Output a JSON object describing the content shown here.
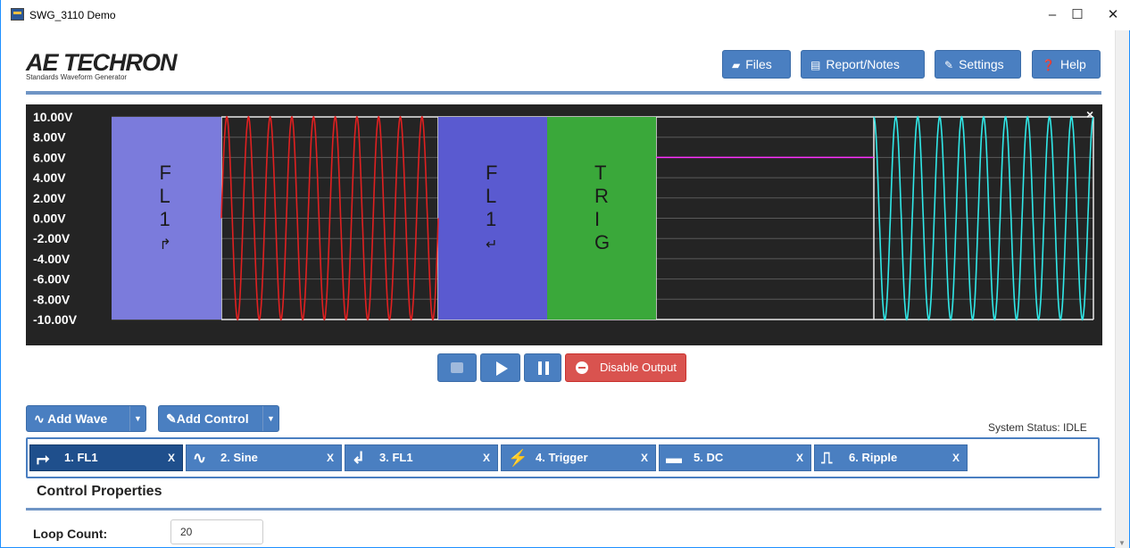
{
  "window": {
    "title": "SWG_3110 Demo",
    "controls": [
      "–",
      "☐",
      "✕"
    ]
  },
  "logo": {
    "main": "AE TECHRON",
    "sub": "Standards Waveform Generator"
  },
  "toolbar": {
    "files": "Files",
    "report": "Report/Notes",
    "settings": "Settings",
    "help": "Help"
  },
  "scope": {
    "close": "×",
    "y_labels": [
      "10.00V",
      "8.00V",
      "6.00V",
      "4.00V",
      "2.00V",
      "0.00V",
      "-2.00V",
      "-4.00V",
      "-6.00V",
      "-8.00V",
      "-10.00V"
    ],
    "blocks": [
      {
        "type": "loop-start",
        "letters": [
          "F",
          "L",
          "1",
          "↱"
        ],
        "color": "#7b7bdc"
      },
      {
        "type": "sine",
        "color": "#e02020"
      },
      {
        "type": "loop-end",
        "letters": [
          "F",
          "L",
          "1",
          "↵"
        ],
        "color": "#5a5ad0"
      },
      {
        "type": "trigger",
        "letters": [
          "T",
          "R",
          "I",
          "G"
        ],
        "color": "#3aa83a"
      },
      {
        "type": "dc",
        "color": "#ff30ff",
        "level": 6
      },
      {
        "type": "ripple",
        "color": "#30e8e8"
      }
    ]
  },
  "playback": {
    "disable_output": "Disable Output"
  },
  "add_wave": "Add Wave",
  "add_control": "Add Control",
  "status": "System Status: IDLE",
  "tabs": [
    {
      "icon": "⮣",
      "label": "1. FL1",
      "close": "X"
    },
    {
      "icon": "∿",
      "label": "2. Sine",
      "close": "X"
    },
    {
      "icon": "↲",
      "label": "3. FL1",
      "close": "X"
    },
    {
      "icon": "⚡",
      "label": "4. Trigger",
      "close": "X"
    },
    {
      "icon": "▬",
      "label": "5. DC",
      "close": "X"
    },
    {
      "icon": "⎍",
      "label": "6. Ripple",
      "close": "X"
    }
  ],
  "properties": {
    "title": "Control Properties",
    "loop_count_label": "Loop Count:",
    "loop_count_value": "20"
  }
}
